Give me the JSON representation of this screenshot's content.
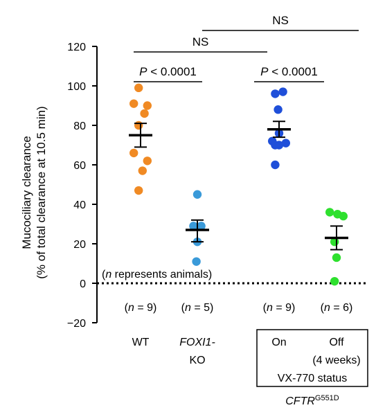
{
  "chart_data": {
    "type": "scatter",
    "ylabel_line1": "Mucociliary clearance",
    "ylabel_line2": "(% of total clearance at 10.5 min)",
    "ylim": [
      -20,
      120
    ],
    "yticks": [
      -20,
      0,
      20,
      40,
      60,
      80,
      100,
      120
    ],
    "zero_line_label": "(n represents animals)",
    "groups": [
      {
        "label": "WT",
        "n_label": "(n = 9)",
        "color": "#F08A24",
        "mean": 75,
        "sem_upper": 81,
        "sem_lower": 69,
        "values": [
          99,
          91,
          90,
          86,
          80,
          66,
          62,
          57,
          47
        ],
        "offsets": [
          -0.1,
          -0.35,
          0.35,
          0.2,
          -0.1,
          -0.35,
          0.35,
          0.1,
          -0.1
        ]
      },
      {
        "label_line1": "FOXI1-",
        "label_line2": "KO",
        "n_label": "(n = 5)",
        "color": "#3A9AD9",
        "mean": 27,
        "sem_upper": 32,
        "sem_lower": 21,
        "values": [
          45,
          29,
          29,
          21,
          11
        ],
        "offsets": [
          0.0,
          -0.2,
          0.2,
          0.0,
          -0.05
        ]
      },
      {
        "label": "On",
        "n_label": "(n = 9)",
        "color": "#1F4FD9",
        "mean": 78,
        "sem_upper": 82,
        "sem_lower": 74,
        "values": [
          97,
          96,
          88,
          76,
          72,
          71,
          70,
          70,
          60
        ],
        "offsets": [
          0.2,
          -0.2,
          -0.05,
          0.0,
          -0.35,
          0.35,
          0.0,
          -0.2,
          -0.2
        ]
      },
      {
        "label_line1": "Off",
        "label_line2": "(4 weeks)",
        "n_label": "(n = 6)",
        "color": "#2EE02E",
        "mean": 23,
        "sem_upper": 29,
        "sem_lower": 17,
        "values": [
          36,
          35,
          34,
          21,
          13,
          1
        ],
        "offsets": [
          -0.35,
          0.05,
          0.35,
          -0.1,
          0.0,
          -0.1
        ]
      }
    ],
    "comparisons": [
      {
        "label_italic": "P",
        "label_rest": " < 0.0001",
        "from": 0,
        "to": 1,
        "level": 0
      },
      {
        "label_italic": "P",
        "label_rest": " < 0.0001",
        "from": 2,
        "to": 3,
        "level": 0
      },
      {
        "label": "NS",
        "from": 0,
        "to": 2,
        "level": 1
      },
      {
        "label": "NS",
        "from": 1,
        "to": 3,
        "level": 2
      }
    ],
    "box_label": "VX-770 status",
    "cftr_base": "CFTR",
    "cftr_sup": "G551D"
  }
}
